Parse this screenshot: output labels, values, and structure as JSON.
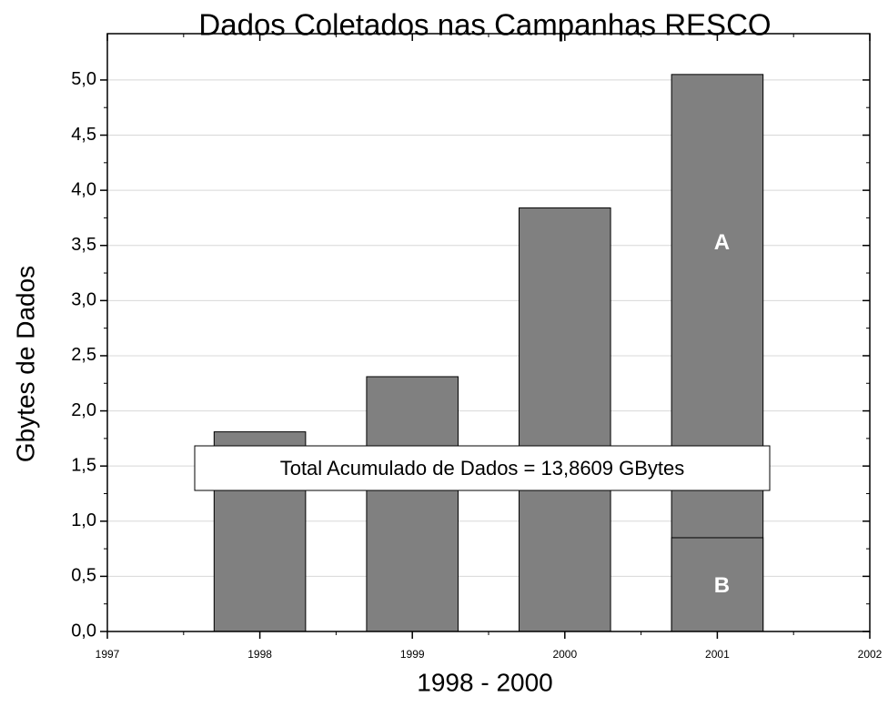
{
  "chart_data": {
    "type": "bar",
    "title": "Dados Coletados nas Campanhas RESCO",
    "x_label": "1998 - 2000",
    "y_label": "Gbytes de Dados",
    "annotation": "Total Acumulado de Dados = 13,8609 GBytes",
    "x": [
      1998,
      1999,
      2000,
      2001
    ],
    "series": [
      {
        "name": "A",
        "color": "#808080",
        "values": [
          1.81,
          2.31,
          3.84,
          5.05
        ]
      },
      {
        "name": "B",
        "color": "#808080",
        "values": [
          null,
          null,
          null,
          0.85
        ]
      }
    ],
    "xlim": [
      1997,
      2002
    ],
    "xticks": [
      1997,
      1998,
      1999,
      2000,
      2001,
      2002
    ],
    "ylim": [
      0,
      5.42
    ],
    "yticks": [
      {
        "value": 0,
        "label": "0,0"
      },
      {
        "value": 0.5,
        "label": "0,5"
      },
      {
        "value": 1,
        "label": "1,0"
      },
      {
        "value": 1.5,
        "label": "1,5"
      },
      {
        "value": 2,
        "label": "2,0"
      },
      {
        "value": 2.5,
        "label": "2,5"
      },
      {
        "value": 3,
        "label": "3,0"
      },
      {
        "value": 3.5,
        "label": "3,5"
      },
      {
        "value": 4,
        "label": "4,0"
      },
      {
        "value": 4.5,
        "label": "4,5"
      },
      {
        "value": 5,
        "label": "5,0"
      }
    ],
    "grid": true
  }
}
